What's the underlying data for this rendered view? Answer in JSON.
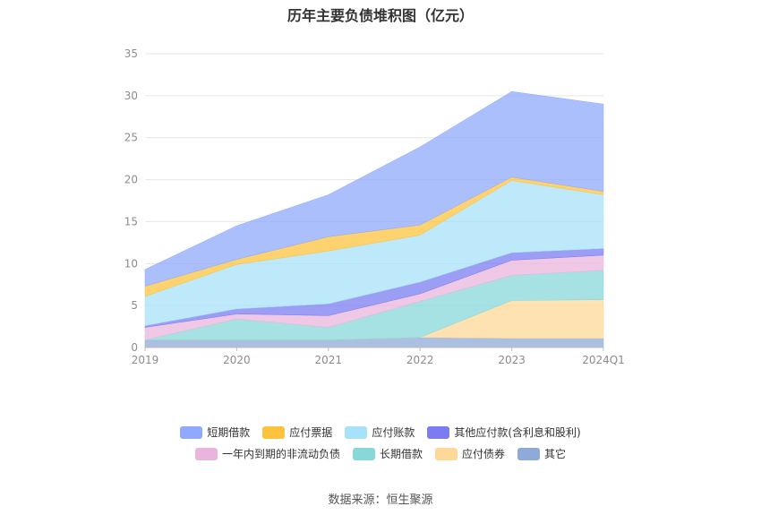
{
  "title": "历年主要负债堆积图（亿元）",
  "source": "数据来源：恒生聚源",
  "chart_data": {
    "type": "area",
    "stacked": true,
    "categories": [
      "2019",
      "2020",
      "2021",
      "2022",
      "2023",
      "2024Q1"
    ],
    "ylim": [
      0,
      35
    ],
    "yticks": [
      "0",
      "5",
      "10",
      "15",
      "20",
      "25",
      "30",
      "35"
    ],
    "grid": true,
    "legend_position": "bottom",
    "series": [
      {
        "name": "短期借款",
        "color": "#8faafc",
        "values": [
          2.0,
          4.0,
          5.0,
          9.3,
          10.2,
          10.4
        ]
      },
      {
        "name": "应付票据",
        "color": "#fdc33d",
        "values": [
          1.2,
          0.6,
          1.7,
          1.2,
          0.4,
          0.4
        ]
      },
      {
        "name": "应付账款",
        "color": "#a8e1fa",
        "values": [
          3.5,
          5.3,
          6.3,
          5.6,
          8.6,
          6.4
        ]
      },
      {
        "name": "其他应付款(含利息和股利)",
        "color": "#7b7cf1",
        "values": [
          0.2,
          0.6,
          1.4,
          1.4,
          0.9,
          0.8
        ]
      },
      {
        "name": "一年内到期的非流动负债",
        "color": "#eab5dd",
        "values": [
          1.5,
          0.6,
          1.4,
          0.9,
          1.8,
          1.8
        ]
      },
      {
        "name": "长期借款",
        "color": "#88d8d9",
        "values": [
          0.0,
          2.5,
          1.5,
          4.3,
          3.0,
          3.5
        ]
      },
      {
        "name": "应付债券",
        "color": "#fed898",
        "values": [
          0.0,
          0.0,
          0.0,
          0.0,
          4.5,
          4.6
        ]
      },
      {
        "name": "其它",
        "color": "#8faad9",
        "values": [
          0.9,
          0.9,
          0.9,
          1.2,
          1.1,
          1.1
        ]
      }
    ]
  }
}
